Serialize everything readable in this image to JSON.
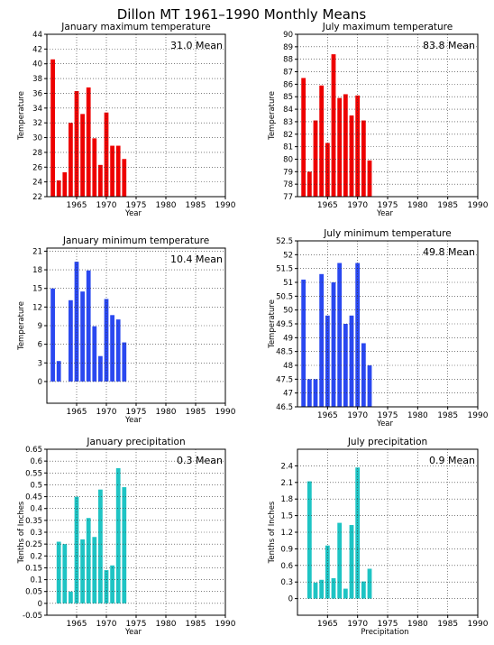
{
  "page_title": "Dillon MT   1961–1990  Monthly Means",
  "colors": {
    "red": "#ee0000",
    "blue": "#2a48f0",
    "teal": "#1ec4c4",
    "grid": "#000000"
  },
  "chart_data": [
    {
      "type": "bar",
      "title": "January maximum temperature",
      "annotation": "31.0 Mean",
      "xlabel": "Year",
      "ylabel": "Temperature",
      "color": "red",
      "xlim": [
        1960,
        1990
      ],
      "xticks": [
        1965,
        1970,
        1975,
        1980,
        1985,
        1990
      ],
      "ylim": [
        22,
        44
      ],
      "yticks": [
        22,
        24,
        26,
        28,
        30,
        32,
        34,
        36,
        38,
        40,
        42,
        44
      ],
      "ytick_labels": [
        "22",
        "24",
        "26",
        "28",
        "30",
        "32",
        "34",
        "36",
        "38",
        "40",
        "42",
        "44"
      ],
      "x": [
        1961,
        1962,
        1963,
        1964,
        1965,
        1966,
        1967,
        1968,
        1969,
        1970,
        1971,
        1972,
        1973
      ],
      "values": [
        40.6,
        24.2,
        25.3,
        32.0,
        36.3,
        33.2,
        36.8,
        29.9,
        26.3,
        33.4,
        28.9,
        28.9,
        27.1
      ]
    },
    {
      "type": "bar",
      "title": "July maximum temperature",
      "annotation": "83.8 Mean",
      "xlabel": "Year",
      "ylabel": "Temperature",
      "color": "red",
      "xlim": [
        1960,
        1990
      ],
      "xticks": [
        1965,
        1970,
        1975,
        1980,
        1985,
        1990
      ],
      "ylim": [
        77,
        90
      ],
      "yticks": [
        77,
        78,
        79,
        80,
        81,
        82,
        83,
        84,
        85,
        86,
        87,
        88,
        89,
        90
      ],
      "ytick_labels": [
        "77",
        "78",
        "79",
        "80",
        "81",
        "82",
        "83",
        "84",
        "85",
        "86",
        "87",
        "88",
        "89",
        "90"
      ],
      "x": [
        1961,
        1962,
        1963,
        1964,
        1965,
        1966,
        1967,
        1968,
        1969,
        1970,
        1971,
        1972
      ],
      "values": [
        86.5,
        79.0,
        83.1,
        85.9,
        81.3,
        88.4,
        84.9,
        85.2,
        83.5,
        85.1,
        83.1,
        79.9
      ]
    },
    {
      "type": "bar",
      "title": "January minimum temperature",
      "annotation": "10.4 Mean",
      "xlabel": "Year",
      "ylabel": "Temperature",
      "color": "blue",
      "xlim": [
        1960,
        1990
      ],
      "xticks": [
        1965,
        1970,
        1975,
        1980,
        1985,
        1990
      ],
      "ylim": [
        -3.5,
        21.5
      ],
      "yticks": [
        0,
        3,
        6,
        9,
        12,
        15,
        18,
        21
      ],
      "ytick_labels": [
        "0",
        "3",
        "6",
        "9",
        "12",
        "15",
        "18",
        "21"
      ],
      "x": [
        1961,
        1962,
        1963,
        1964,
        1965,
        1966,
        1967,
        1968,
        1969,
        1970,
        1971,
        1972,
        1973
      ],
      "values": [
        15.0,
        3.3,
        -0.4,
        13.1,
        19.3,
        14.5,
        17.9,
        8.9,
        4.1,
        13.3,
        10.7,
        10.0,
        6.3
      ]
    },
    {
      "type": "bar",
      "title": "July minimum temperature",
      "annotation": "49.8 Mean",
      "xlabel": "Year",
      "ylabel": "Temperature",
      "color": "blue",
      "xlim": [
        1960,
        1990
      ],
      "xticks": [
        1965,
        1970,
        1975,
        1980,
        1985,
        1990
      ],
      "ylim": [
        46.5,
        52.5
      ],
      "yticks": [
        46.5,
        47,
        47.5,
        48,
        48.5,
        49,
        49.5,
        50,
        50.5,
        51,
        51.5,
        52,
        52.5
      ],
      "ytick_labels": [
        "46.5",
        "47",
        "47.5",
        "48",
        "48.5",
        "49",
        "49.5",
        "50",
        "50.5",
        "51",
        "51.5",
        "52",
        "52.5"
      ],
      "x": [
        1961,
        1962,
        1963,
        1964,
        1965,
        1966,
        1967,
        1968,
        1969,
        1970,
        1971,
        1972
      ],
      "values": [
        51.1,
        47.5,
        47.5,
        51.3,
        49.8,
        51.0,
        51.7,
        49.5,
        49.8,
        51.7,
        48.8,
        48.0
      ]
    },
    {
      "type": "bar",
      "title": "January precipitation",
      "annotation": "0.3 Mean",
      "xlabel": "Year",
      "ylabel": "Tenths of Inches",
      "color": "teal",
      "xlim": [
        1960,
        1990
      ],
      "xticks": [
        1965,
        1970,
        1975,
        1980,
        1985,
        1990
      ],
      "ylim": [
        -0.05,
        0.65
      ],
      "yticks": [
        -0.05,
        0,
        0.05,
        0.1,
        0.15,
        0.2,
        0.25,
        0.3,
        0.35,
        0.4,
        0.45,
        0.5,
        0.55,
        0.6,
        0.65
      ],
      "ytick_labels": [
        "-0.05",
        "0",
        "0.05",
        "0.1",
        "0.15",
        "0.2",
        "0.25",
        "0.3",
        "0.35",
        "0.4",
        "0.45",
        "0.5",
        "0.55",
        "0.6",
        "0.65"
      ],
      "x": [
        1961,
        1962,
        1963,
        1964,
        1965,
        1966,
        1967,
        1968,
        1969,
        1970,
        1971,
        1972,
        1973
      ],
      "values": [
        0.0,
        0.26,
        0.25,
        0.05,
        0.45,
        0.27,
        0.36,
        0.28,
        0.48,
        0.14,
        0.16,
        0.57,
        0.49
      ]
    },
    {
      "type": "bar",
      "title": "July precipitation",
      "annotation": "0.9 Mean",
      "xlabel": "Precipitation",
      "ylabel": "Tenths of Inches",
      "color": "teal",
      "xlim": [
        1960,
        1990
      ],
      "xticks": [
        1965,
        1970,
        1975,
        1980,
        1985,
        1990
      ],
      "ylim": [
        -0.3,
        2.7
      ],
      "yticks": [
        0,
        0.3,
        0.6,
        0.9,
        1.2,
        1.5,
        1.8,
        2.1,
        2.4
      ],
      "ytick_labels": [
        "0",
        "0.3",
        "0.6",
        "0.9",
        "1.2",
        "1.5",
        "1.8",
        "2.1",
        "2.4"
      ],
      "x": [
        1961,
        1962,
        1963,
        1964,
        1965,
        1966,
        1967,
        1968,
        1969,
        1970,
        1971,
        1972
      ],
      "values": [
        0.0,
        2.12,
        0.29,
        0.34,
        0.96,
        0.37,
        1.37,
        0.18,
        1.33,
        2.37,
        0.31,
        0.54
      ]
    }
  ]
}
